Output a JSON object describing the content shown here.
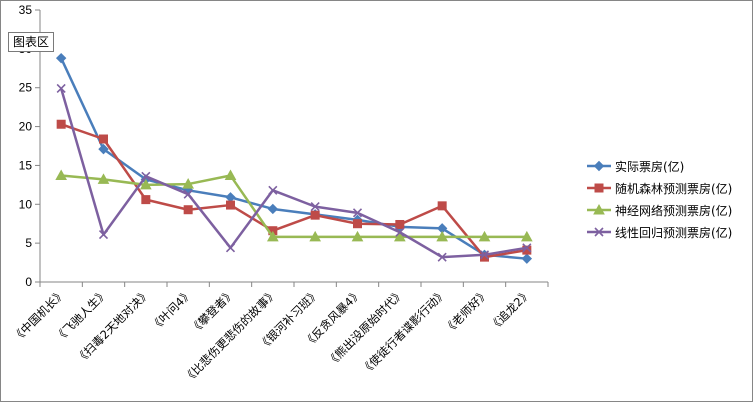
{
  "tooltip": "图表区",
  "chart_data": {
    "type": "line",
    "categories": [
      "《中国机长》",
      "《飞驰人生》",
      "《扫毒2天地对决》",
      "《叶问4》",
      "《攀登者》",
      "《比悲伤更悲伤的故事》",
      "《银河补习班》",
      "《反贪风暴4》",
      "《熊出没原始时代》",
      "《使徒行者谍影行动》",
      "《老师好》",
      "《追龙2》"
    ],
    "ylim": [
      0,
      35
    ],
    "yticks": [
      0,
      5,
      10,
      15,
      20,
      25,
      30,
      35
    ],
    "grid": false,
    "legend_position": "right",
    "series": [
      {
        "name": "实际票房(亿)",
        "color": "#4a7ebb",
        "marker": "diamond",
        "values": [
          28.8,
          17.1,
          13.2,
          11.8,
          10.9,
          9.4,
          8.7,
          8.0,
          7.1,
          6.9,
          3.5,
          3.0
        ]
      },
      {
        "name": "随机森林预测票房(亿)",
        "color": "#be4b48",
        "marker": "square",
        "values": [
          20.3,
          18.4,
          10.6,
          9.3,
          9.9,
          6.6,
          8.6,
          7.5,
          7.4,
          9.8,
          3.2,
          4.1
        ]
      },
      {
        "name": "神经网络预测票房(亿)",
        "color": "#98b954",
        "marker": "triangle",
        "values": [
          13.7,
          13.2,
          12.5,
          12.6,
          13.7,
          5.8,
          5.8,
          5.8,
          5.8,
          5.8,
          5.8,
          5.8
        ]
      },
      {
        "name": "线性回归预测票房(亿)",
        "color": "#7d60a0",
        "marker": "x",
        "values": [
          24.9,
          6.1,
          13.6,
          11.3,
          4.4,
          11.8,
          9.7,
          8.9,
          6.4,
          3.2,
          3.5,
          4.4
        ]
      }
    ]
  }
}
